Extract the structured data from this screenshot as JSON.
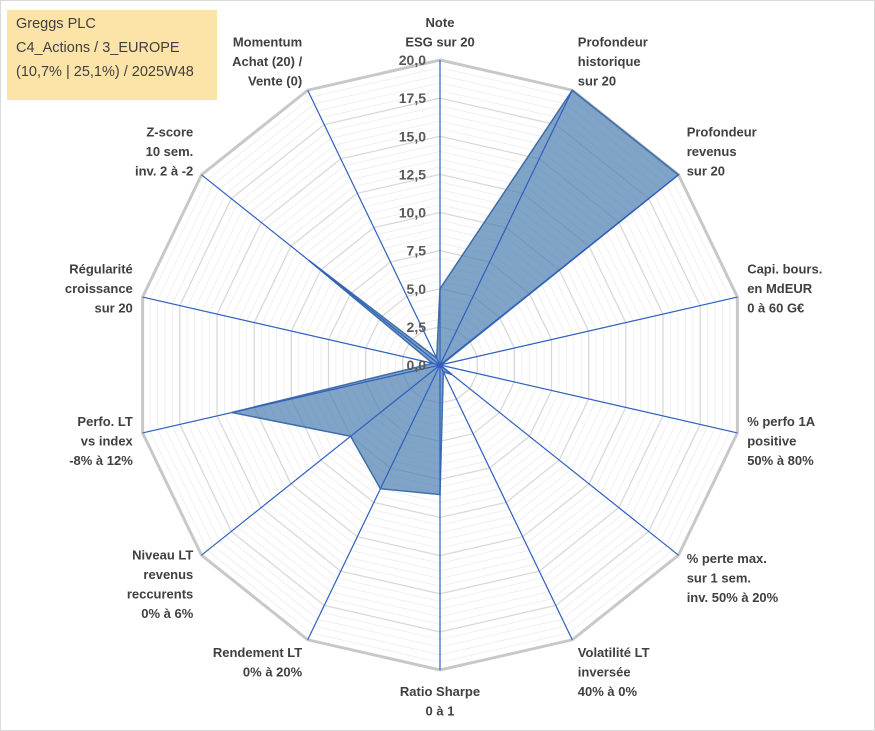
{
  "title_box": {
    "company": "Greggs PLC",
    "category": "C4_Actions / 3_EUROPE",
    "details": "(10,7% | 25,1%) / 2025W48"
  },
  "chart_data": {
    "type": "radar",
    "title": "Greggs PLC",
    "r_range": [
      0,
      20
    ],
    "ticks": [
      "0,0",
      "2,5",
      "5,0",
      "7,5",
      "10,0",
      "12,5",
      "15,0",
      "17,5",
      "20,0"
    ],
    "tick_values": [
      0,
      2.5,
      5,
      7.5,
      10,
      12.5,
      15,
      17.5,
      20
    ],
    "axes": [
      {
        "lines": [
          "Note",
          "ESG sur 20"
        ],
        "value": 5.0
      },
      {
        "lines": [
          "Profondeur",
          "historique",
          "sur 20"
        ],
        "value": 20.0
      },
      {
        "lines": [
          "Profondeur",
          "revenus",
          "sur 20"
        ],
        "value": 20.0
      },
      {
        "lines": [
          "Capi. bours.",
          "en MdEUR",
          "0 à 60 G€"
        ],
        "value": 0.1
      },
      {
        "lines": [
          "% perfo 1A",
          "positive",
          "50% à 80%"
        ],
        "value": 0.0
      },
      {
        "lines": [
          "% perte max.",
          "sur 1 sem.",
          "inv. 50% à 20%"
        ],
        "value": 1.0
      },
      {
        "lines": [
          "Volatilité LT",
          "inversée",
          "40% à 0%"
        ],
        "value": 0.5
      },
      {
        "lines": [
          "Ratio Sharpe",
          "0 à 1"
        ],
        "value": 8.5
      },
      {
        "lines": [
          "Rendement LT",
          "0% à 20%"
        ],
        "value": 9.0
      },
      {
        "lines": [
          "Niveau LT",
          "revenus",
          "reccurents",
          "0% à 6%"
        ],
        "value": 7.5
      },
      {
        "lines": [
          "Perfo. LT",
          "vs index",
          "-8% à 12%"
        ],
        "value": 14.0
      },
      {
        "lines": [
          "Régularité",
          "croissance",
          "sur 20"
        ],
        "value": 0.5
      },
      {
        "lines": [
          "Z-score",
          "10 sem.",
          "inv. 2 à -2"
        ],
        "value": 11.0
      },
      {
        "lines": [
          "Momentum",
          "Achat (20) /",
          "Vente (0)"
        ],
        "value": 0.5
      }
    ],
    "series": [
      {
        "name": "Greggs PLC"
      }
    ],
    "colors": {
      "fill": "#4f7fb3",
      "spoke": "#2f5fbf",
      "grid": "#c0c0c0",
      "label": "#404040"
    }
  }
}
